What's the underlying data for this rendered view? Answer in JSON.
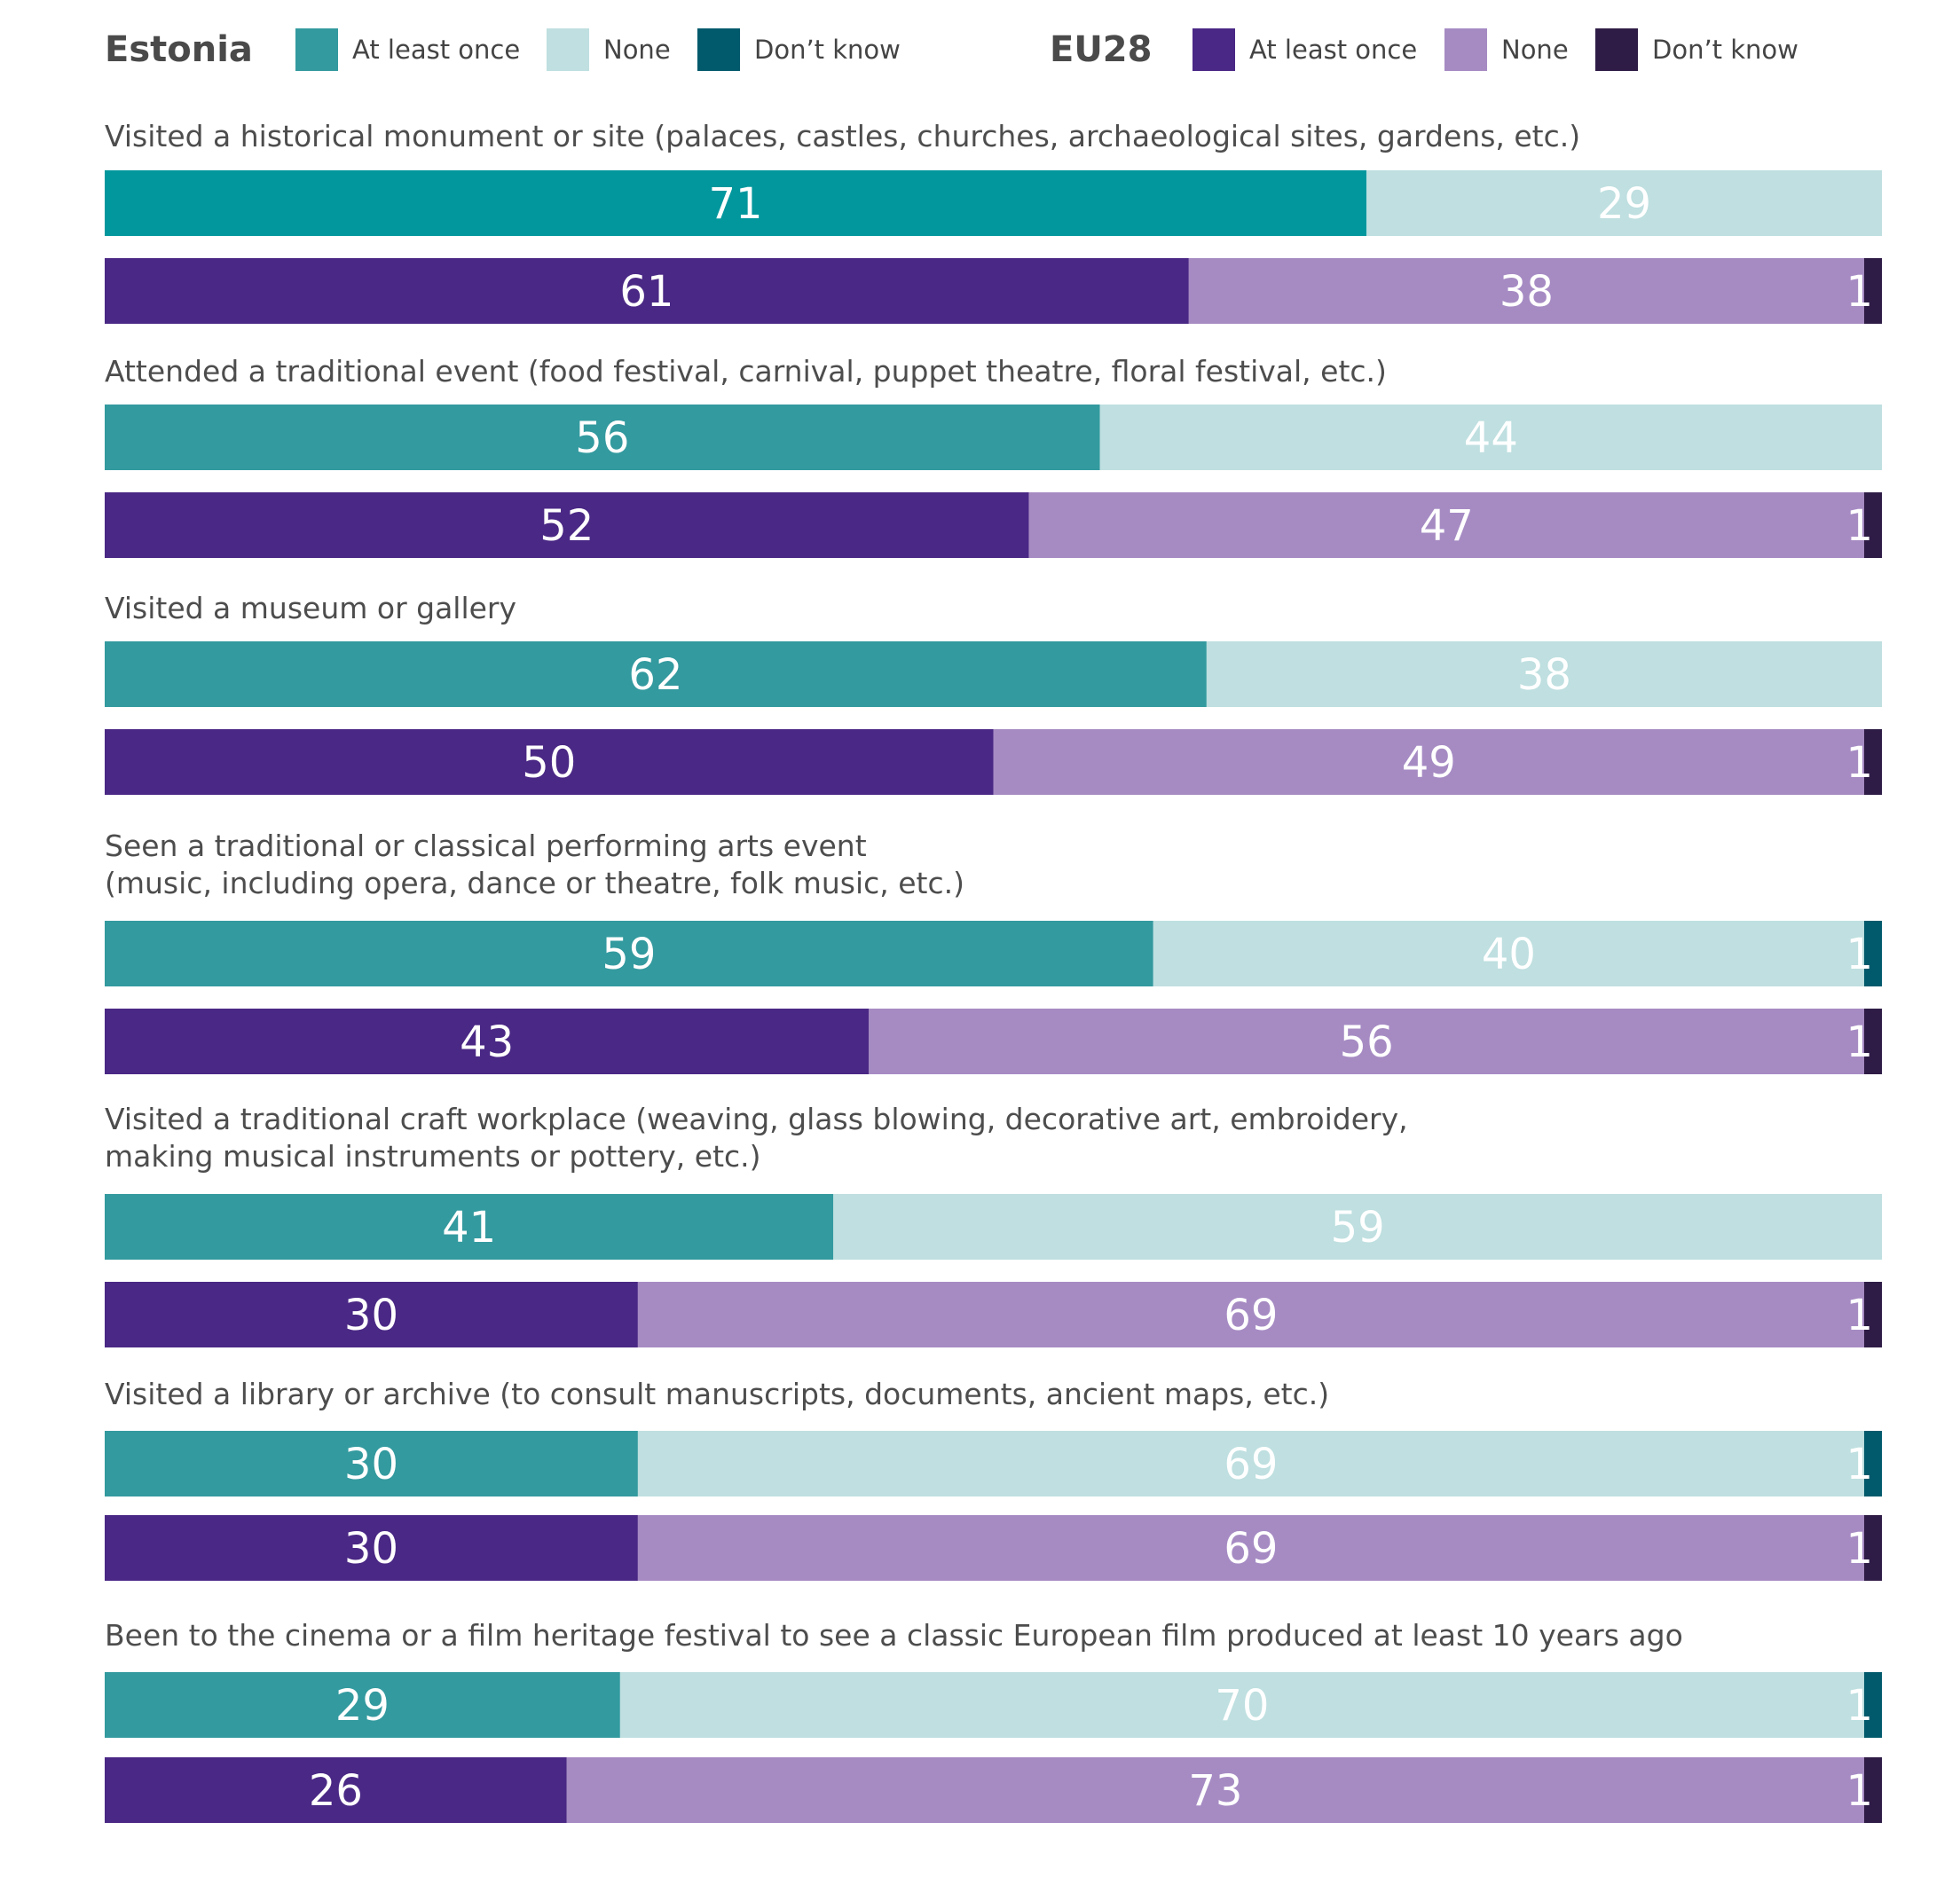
{
  "chart_data": {
    "type": "bar",
    "orientation": "horizontal-stacked-100",
    "groups": [
      {
        "name": "Estonia",
        "segments": [
          {
            "name": "At least once",
            "color": "#339a9f"
          },
          {
            "name": "None",
            "color": "#bfdfe0"
          },
          {
            "name": "Don’t know",
            "color": "#015a6c"
          }
        ]
      },
      {
        "name": "EU28",
        "segments": [
          {
            "name": "At least once",
            "color": "#4a2885"
          },
          {
            "name": "None",
            "color": "#a68bc3"
          },
          {
            "name": "Don’t know",
            "color": "#2f1c46"
          }
        ]
      }
    ],
    "categories": [
      {
        "label": [
          "Visited a historical monument or site (palaces, castles, churches, archaeological sites, gardens, etc.)"
        ],
        "estonia": [
          71,
          29,
          0
        ],
        "eu28": [
          61,
          38,
          1
        ],
        "estonia_color": "#02979d"
      },
      {
        "label": [
          "Attended a traditional event (food festival, carnival, puppet theatre, floral festival, etc.)"
        ],
        "estonia": [
          56,
          44,
          0
        ],
        "eu28": [
          52,
          47,
          1
        ]
      },
      {
        "label": [
          "Visited a museum or gallery"
        ],
        "estonia": [
          62,
          38,
          0
        ],
        "eu28": [
          50,
          49,
          1
        ]
      },
      {
        "label": [
          "Seen a traditional or classical performing arts event",
          "(music, including opera, dance or theatre, folk music, etc.)"
        ],
        "estonia": [
          59,
          40,
          1
        ],
        "eu28": [
          43,
          56,
          1
        ]
      },
      {
        "label": [
          "Visited a traditional craft workplace (weaving, glass blowing, decorative art, embroidery,",
          "making musical instruments or pottery, etc.)"
        ],
        "estonia": [
          41,
          59,
          0
        ],
        "eu28": [
          30,
          69,
          1
        ]
      },
      {
        "label": [
          "Visited a library or archive (to consult manuscripts, documents, ancient maps, etc.)"
        ],
        "estonia": [
          30,
          69,
          1
        ],
        "eu28": [
          30,
          69,
          1
        ]
      },
      {
        "label": [
          "Been to the cinema or a film heritage festival to see a classic European film produced at least 10 years ago"
        ],
        "estonia": [
          29,
          70,
          1
        ],
        "eu28": [
          26,
          73,
          1
        ]
      }
    ],
    "xlim": [
      0,
      100
    ],
    "legend_position": "top"
  }
}
